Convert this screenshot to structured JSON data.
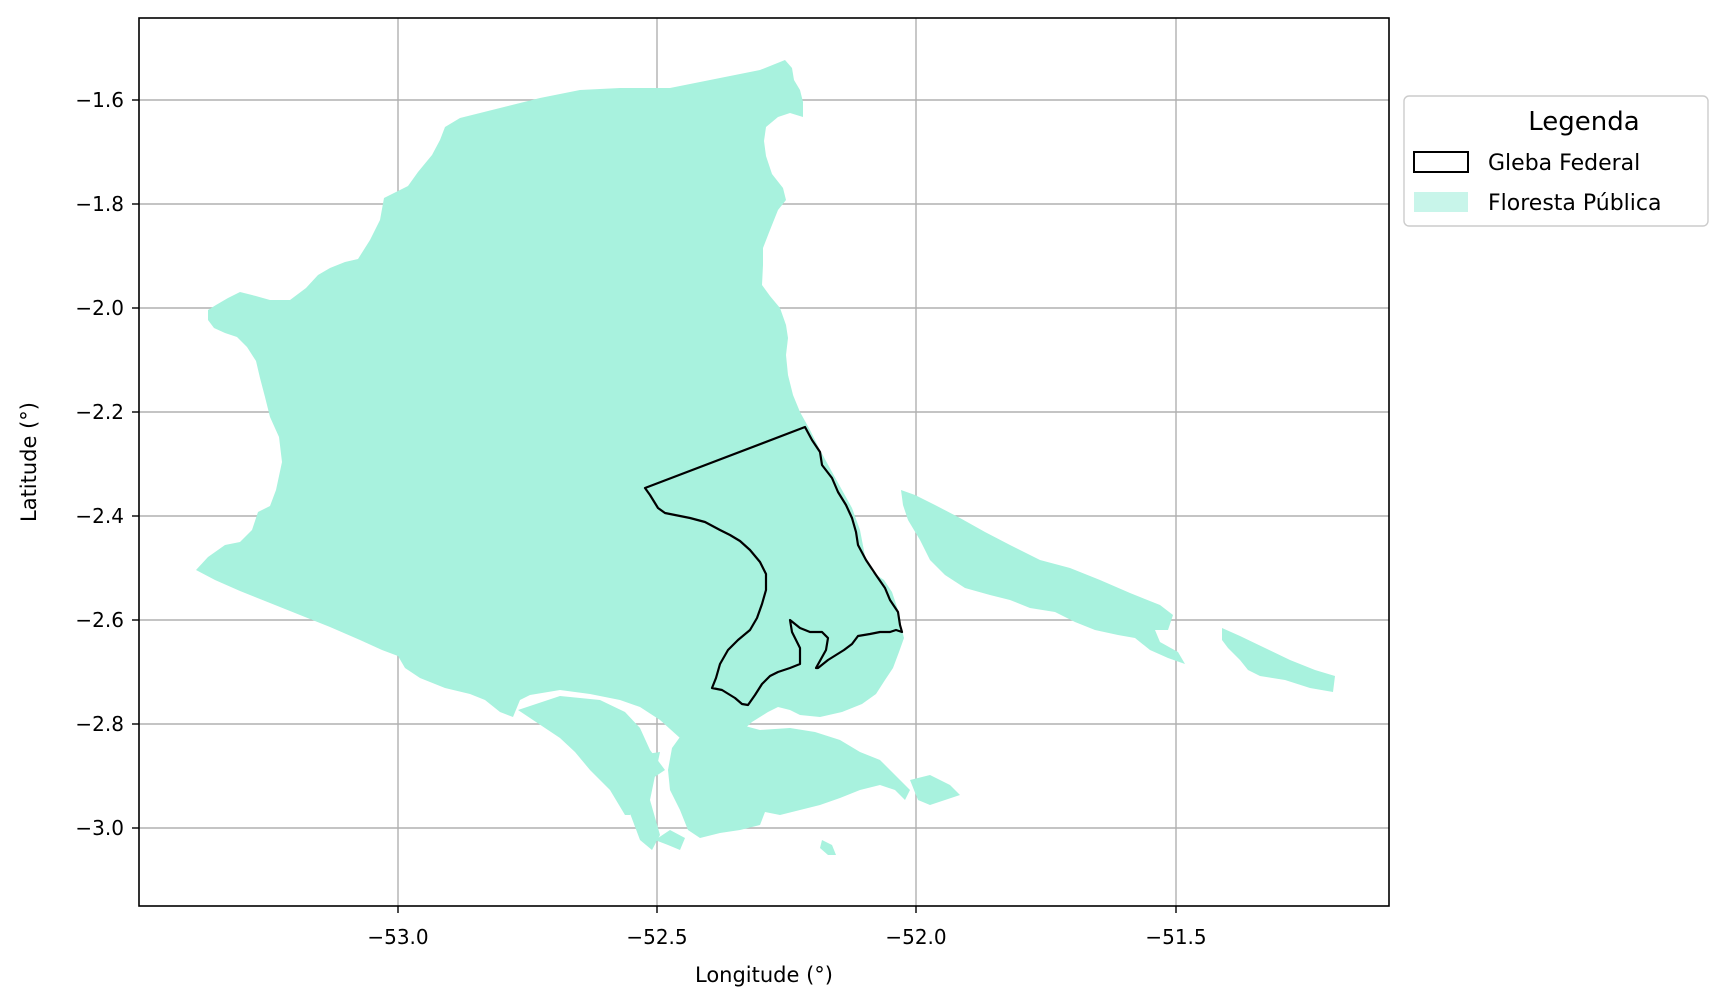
{
  "map": {
    "x_axis": {
      "label": "Longitude (°)",
      "ticks": [
        "−53.0",
        "−52.5",
        "−52.0",
        "−51.5"
      ],
      "tick_values": [
        -53.0,
        -52.5,
        -52.0,
        -51.5
      ],
      "range": [
        -53.5,
        -51.09
      ]
    },
    "y_axis": {
      "label": "Latitude (°)",
      "ticks": [
        "−1.6",
        "−1.8",
        "−2.0",
        "−2.2",
        "−2.4",
        "−2.6",
        "−2.8",
        "−3.0"
      ],
      "tick_values": [
        -1.6,
        -1.8,
        -2.0,
        -2.2,
        -2.4,
        -2.6,
        -2.8,
        -3.0
      ],
      "range": [
        -3.155,
        -1.445
      ]
    },
    "grid": true,
    "legend": {
      "title": "Legenda",
      "placement": "outside right, top",
      "items": [
        {
          "label": "Gleba Federal",
          "style": "outline",
          "color": "#000000"
        },
        {
          "label": "Floresta Pública",
          "style": "fill",
          "color": "#a8f2de"
        }
      ]
    },
    "colors": {
      "forest_fill": "#a8f2de",
      "gleba_outline": "#000000",
      "grid": "#b0b0b0"
    }
  }
}
